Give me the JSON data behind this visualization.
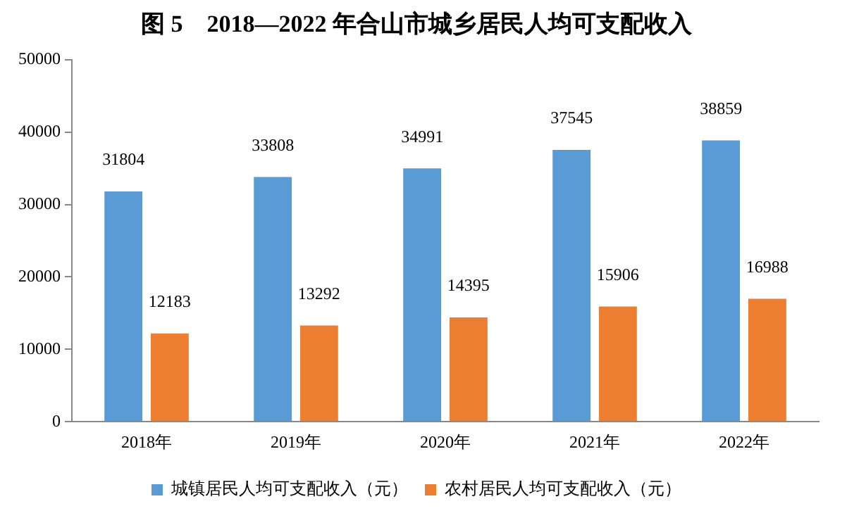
{
  "chart_data": {
    "type": "bar",
    "title": "图 5　2018—2022 年合山市城乡居民人均可支配收入",
    "categories": [
      "2018年",
      "2019年",
      "2020年",
      "2021年",
      "2022年"
    ],
    "series": [
      {
        "name": "城镇居民人均可支配收入（元）",
        "color": "#5b9bd5",
        "values": [
          31804,
          33808,
          34991,
          37545,
          38859
        ]
      },
      {
        "name": "农村居民人均可支配收入（元）",
        "color": "#ed7d31",
        "values": [
          12183,
          13292,
          14395,
          15906,
          16988
        ]
      }
    ],
    "ylim": [
      0,
      50000
    ],
    "yticks": [
      0,
      10000,
      20000,
      30000,
      40000,
      50000
    ],
    "grid": false,
    "legend": "bottom",
    "data_labels": true
  }
}
